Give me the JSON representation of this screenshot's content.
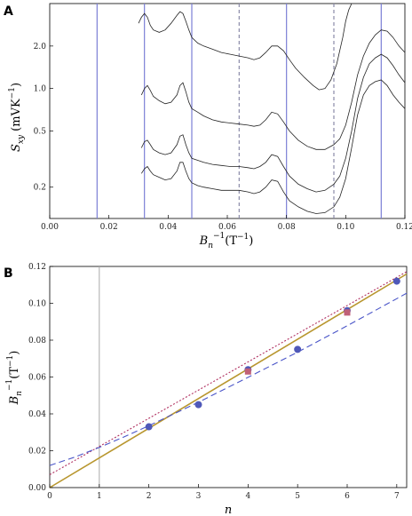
{
  "chart_data": [
    {
      "panel": "A",
      "type": "line",
      "xlabel": "B_n^{-1}(T^{-1})",
      "ylabel": "S_xy (mVK^{-1})",
      "xlim": [
        0.0,
        0.12
      ],
      "y_scale": "log",
      "ylim": [
        0.12,
        4.0
      ],
      "x_ticks": [
        "0.00",
        "0.02",
        "0.04",
        "0.06",
        "0.08",
        "0.10",
        "0.12"
      ],
      "y_ticks": [
        {
          "value": 2.0,
          "label": "2.0"
        },
        {
          "value": 1.0,
          "label": "1.0"
        },
        {
          "value": 0.5,
          "label": "0.5"
        },
        {
          "value": 0.2,
          "label": "0.2"
        }
      ],
      "vertical_lines": [
        {
          "x": 0.016,
          "style": "solid",
          "color": "#7b7fd6"
        },
        {
          "x": 0.032,
          "style": "solid",
          "color": "#7b7fd6"
        },
        {
          "x": 0.048,
          "style": "solid",
          "color": "#7b7fd6"
        },
        {
          "x": 0.064,
          "style": "dashed",
          "color": "#8a8aa8"
        },
        {
          "x": 0.08,
          "style": "solid",
          "color": "#7b7fd6"
        },
        {
          "x": 0.096,
          "style": "dashed",
          "color": "#8a8aa8"
        },
        {
          "x": 0.112,
          "style": "solid",
          "color": "#7b7fd6"
        }
      ],
      "series": [
        {
          "x": [
            0.03,
            0.031,
            0.032,
            0.033,
            0.034,
            0.035,
            0.037,
            0.039,
            0.041,
            0.043,
            0.044,
            0.045,
            0.046,
            0.047,
            0.048,
            0.05,
            0.052,
            0.055,
            0.058,
            0.061,
            0.064,
            0.067,
            0.069,
            0.071,
            0.073,
            0.075,
            0.077,
            0.079,
            0.081,
            0.083,
            0.086,
            0.089,
            0.091,
            0.093,
            0.095,
            0.097,
            0.099,
            0.1,
            0.101,
            0.102
          ],
          "values": [
            2.9,
            3.2,
            3.4,
            3.2,
            2.8,
            2.6,
            2.5,
            2.6,
            2.9,
            3.3,
            3.5,
            3.4,
            3.0,
            2.6,
            2.3,
            2.1,
            2.0,
            1.9,
            1.8,
            1.75,
            1.7,
            1.65,
            1.6,
            1.65,
            1.8,
            2.0,
            2.0,
            1.85,
            1.6,
            1.4,
            1.2,
            1.05,
            0.98,
            1.0,
            1.15,
            1.5,
            2.3,
            3.0,
            3.6,
            4.2
          ]
        },
        {
          "x": [
            0.031,
            0.032,
            0.033,
            0.034,
            0.035,
            0.037,
            0.039,
            0.041,
            0.043,
            0.044,
            0.045,
            0.046,
            0.047,
            0.048,
            0.05,
            0.052,
            0.055,
            0.058,
            0.061,
            0.064,
            0.067,
            0.069,
            0.071,
            0.073,
            0.075,
            0.077,
            0.079,
            0.081,
            0.084,
            0.087,
            0.09,
            0.093,
            0.096,
            0.098,
            0.1,
            0.102,
            0.104,
            0.106,
            0.108,
            0.11,
            0.112,
            0.114,
            0.116,
            0.118,
            0.12
          ],
          "values": [
            0.9,
            1.0,
            1.05,
            0.97,
            0.88,
            0.82,
            0.78,
            0.8,
            0.9,
            1.05,
            1.1,
            0.95,
            0.8,
            0.72,
            0.68,
            0.64,
            0.6,
            0.58,
            0.57,
            0.56,
            0.55,
            0.54,
            0.55,
            0.6,
            0.68,
            0.66,
            0.58,
            0.5,
            0.43,
            0.39,
            0.37,
            0.37,
            0.4,
            0.44,
            0.55,
            0.8,
            1.25,
            1.7,
            2.1,
            2.4,
            2.6,
            2.55,
            2.3,
            2.0,
            1.8
          ]
        },
        {
          "x": [
            0.031,
            0.032,
            0.033,
            0.034,
            0.035,
            0.037,
            0.039,
            0.041,
            0.043,
            0.044,
            0.045,
            0.046,
            0.047,
            0.048,
            0.05,
            0.052,
            0.055,
            0.058,
            0.061,
            0.064,
            0.067,
            0.069,
            0.071,
            0.073,
            0.075,
            0.077,
            0.079,
            0.081,
            0.084,
            0.087,
            0.09,
            0.093,
            0.096,
            0.098,
            0.1,
            0.102,
            0.104,
            0.106,
            0.108,
            0.11,
            0.112,
            0.114,
            0.116,
            0.118,
            0.12
          ],
          "values": [
            0.38,
            0.42,
            0.43,
            0.4,
            0.37,
            0.35,
            0.34,
            0.35,
            0.4,
            0.46,
            0.47,
            0.4,
            0.35,
            0.32,
            0.31,
            0.3,
            0.29,
            0.285,
            0.28,
            0.28,
            0.275,
            0.27,
            0.28,
            0.3,
            0.34,
            0.33,
            0.28,
            0.24,
            0.21,
            0.195,
            0.185,
            0.19,
            0.21,
            0.24,
            0.32,
            0.5,
            0.85,
            1.2,
            1.5,
            1.65,
            1.75,
            1.65,
            1.45,
            1.25,
            1.1
          ]
        },
        {
          "x": [
            0.031,
            0.032,
            0.033,
            0.034,
            0.035,
            0.037,
            0.039,
            0.041,
            0.043,
            0.044,
            0.045,
            0.046,
            0.047,
            0.048,
            0.05,
            0.052,
            0.055,
            0.058,
            0.061,
            0.064,
            0.067,
            0.069,
            0.071,
            0.073,
            0.075,
            0.077,
            0.079,
            0.081,
            0.084,
            0.087,
            0.09,
            0.093,
            0.096,
            0.098,
            0.1,
            0.102,
            0.104,
            0.106,
            0.108,
            0.11,
            0.112,
            0.114,
            0.116,
            0.118,
            0.12
          ],
          "values": [
            0.25,
            0.27,
            0.28,
            0.26,
            0.245,
            0.235,
            0.225,
            0.23,
            0.26,
            0.3,
            0.3,
            0.26,
            0.23,
            0.215,
            0.205,
            0.2,
            0.195,
            0.19,
            0.19,
            0.19,
            0.185,
            0.18,
            0.185,
            0.2,
            0.225,
            0.22,
            0.185,
            0.16,
            0.145,
            0.135,
            0.13,
            0.132,
            0.145,
            0.17,
            0.23,
            0.38,
            0.65,
            0.9,
            1.05,
            1.12,
            1.15,
            1.05,
            0.9,
            0.8,
            0.72
          ]
        }
      ],
      "line_color": "#222222"
    },
    {
      "panel": "B",
      "type": "scatter",
      "xlabel": "n",
      "ylabel": "B_n^{-1}(T^{-1})",
      "xlim": [
        0,
        7.2
      ],
      "ylim": [
        0,
        0.12
      ],
      "x_ticks": [
        "0",
        "1",
        "2",
        "3",
        "4",
        "5",
        "6",
        "7"
      ],
      "y_ticks": [
        "0.00",
        "0.02",
        "0.04",
        "0.06",
        "0.08",
        "0.10",
        "0.12"
      ],
      "reference_vline": {
        "x": 1,
        "color": "#aaaaaa"
      },
      "points_circles": {
        "x": [
          2,
          3,
          4,
          5,
          6,
          7
        ],
        "values": [
          0.033,
          0.045,
          0.064,
          0.075,
          0.096,
          0.112
        ],
        "color": "#4f58b8"
      },
      "points_squares": {
        "x": [
          4,
          6
        ],
        "values": [
          0.063,
          0.095
        ],
        "color": "#c06078"
      },
      "fit_lines": [
        {
          "style": "solid",
          "color": "#b8962e",
          "intercept": 0.0,
          "slope": 0.0161
        },
        {
          "style": "dotted",
          "color": "#b03060",
          "intercept": 0.007,
          "slope": 0.0153
        },
        {
          "style": "dashed",
          "color": "#4a55c8",
          "curve": [
            [
              0,
              0.012
            ],
            [
              0.5,
              0.0165
            ],
            [
              1,
              0.0218
            ],
            [
              1.5,
              0.0275
            ],
            [
              2,
              0.0336
            ],
            [
              3,
              0.0463
            ],
            [
              4,
              0.0598
            ],
            [
              5,
              0.0735
            ],
            [
              6,
              0.0878
            ],
            [
              7,
              0.1025
            ],
            [
              7.2,
              0.1055
            ]
          ]
        }
      ]
    }
  ]
}
